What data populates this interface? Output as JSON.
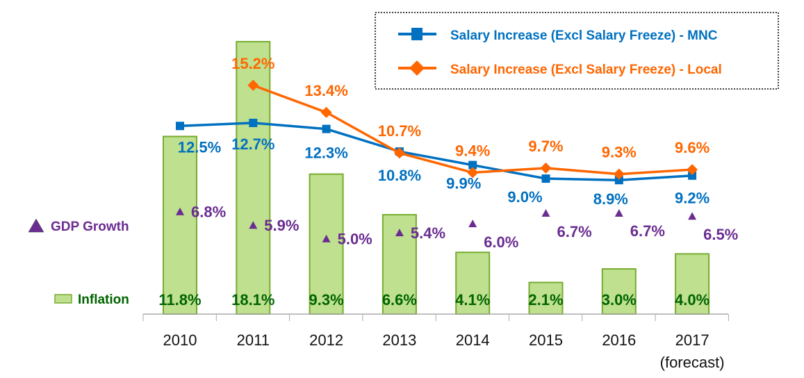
{
  "chart_data": {
    "type": "bar",
    "categories": [
      "2010",
      "2011",
      "2012",
      "2013",
      "2014",
      "2015",
      "2016",
      "2017"
    ],
    "category_sublabels": [
      "",
      "",
      "",
      "",
      "",
      "",
      "",
      "(forecast)"
    ],
    "unit": "%",
    "ylim": [
      0,
      20
    ],
    "grid": false,
    "series": [
      {
        "name": "Inflation",
        "kind": "bar",
        "color": "#BFE08F",
        "border": "#77AC2F",
        "label_color": "#006400",
        "values": [
          11.8,
          18.1,
          9.3,
          6.6,
          4.1,
          2.1,
          3.0,
          4.0
        ]
      },
      {
        "name": "Salary Increase (Excl Salary Freeze) - MNC",
        "kind": "line",
        "marker": "square",
        "color": "#0070C0",
        "values": [
          12.5,
          12.7,
          12.3,
          10.8,
          9.9,
          9.0,
          8.9,
          9.2
        ]
      },
      {
        "name": "Salary Increase (Excl Salary Freeze) - Local",
        "kind": "line",
        "marker": "diamond",
        "color": "#FF6600",
        "values": [
          null,
          15.2,
          13.4,
          10.7,
          9.4,
          9.7,
          9.3,
          9.6
        ]
      },
      {
        "name": "GDP Growth",
        "kind": "scatter",
        "marker": "triangle",
        "color": "#6A2C91",
        "values": [
          6.8,
          5.9,
          5.0,
          5.4,
          6.0,
          6.7,
          6.7,
          6.5
        ]
      }
    ],
    "legend": {
      "placement": "top-right",
      "border": "dotted"
    }
  }
}
